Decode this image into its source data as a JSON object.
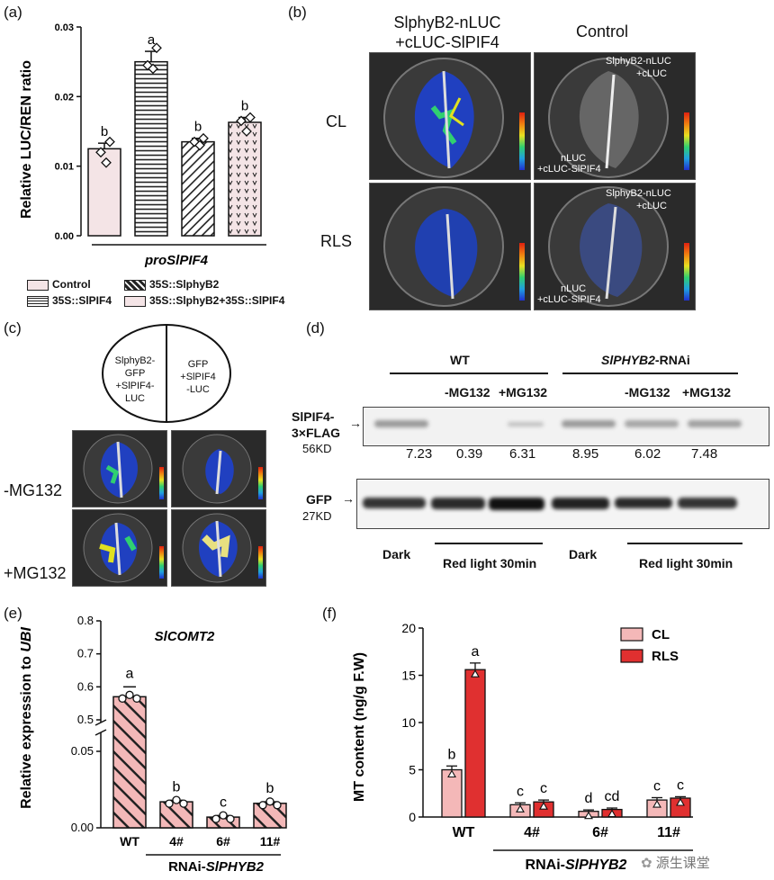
{
  "panel_a": {
    "tag": "(a)",
    "ylabel": "Relative LUC/REN ratio",
    "xlabel": "proSlPIF4",
    "legend": [
      "Control",
      "35S::SlPIF4",
      "35S::SlphyB2",
      "35S::SlphyB2+35S::SlPIF4"
    ],
    "letters": [
      "b",
      "a",
      "b",
      "b"
    ]
  },
  "panel_b": {
    "tag": "(b)",
    "col1_line1": "SlphyB2-nLUC",
    "col1_line2": "+cLUC-SlPIF4",
    "col2": "Control",
    "row1": "CL",
    "row2": "RLS",
    "ann_top1": "SlphyB2-nLUC",
    "ann_top2": "+cLUC",
    "ann_bot1": "nLUC",
    "ann_bot2": "+cLUC-SlPIF4"
  },
  "panel_c": {
    "tag": "(c)",
    "left_lines": [
      "SlphyB2-",
      "GFP",
      "+SlPIF4-",
      "LUC"
    ],
    "right_lines": [
      "GFP",
      "+SlPIF4",
      "-LUC"
    ],
    "row1": "-MG132",
    "row2": "+MG132"
  },
  "panel_d": {
    "tag": "(d)",
    "wt": "WT",
    "rnai_gene": "SlPHYB2",
    "rnai_suffix": "-RNAi",
    "mg_minus": "-MG132",
    "mg_plus": "+MG132",
    "mg_minus2": "-MG132",
    "mg_plus2": "+MG132",
    "band1_line1": "SlPIF4-",
    "band1_line2": "3×FLAG",
    "band1_kd": "56KD",
    "band2": "GFP",
    "band2_kd": "27KD",
    "quant": [
      "7.23",
      "0.39",
      "6.31",
      "8.95",
      "6.02",
      "7.48"
    ],
    "dark1": "Dark",
    "red1": "Red light 30min",
    "dark2": "Dark",
    "red2": "Red light 30min"
  },
  "chart_data": [
    {
      "type": "bar",
      "panel": "(a)",
      "categories": [
        "Control",
        "35S::SlPIF4",
        "35S::SlphyB2",
        "35S::SlphyB2+35S::SlPIF4"
      ],
      "values": [
        0.0125,
        0.025,
        0.0135,
        0.0163
      ],
      "errors": [
        0.0008,
        0.0015,
        0.0005,
        0.0007
      ],
      "points": [
        [
          0.0135,
          0.012,
          0.0105
        ],
        [
          0.027,
          0.0245,
          0.024
        ],
        [
          0.014,
          0.0135,
          0.013
        ],
        [
          0.017,
          0.0165,
          0.015
        ]
      ],
      "ylabel": "Relative LUC/REN ratio",
      "xlabel": "proSlPIF4",
      "ylim": [
        0,
        0.03
      ],
      "yticks": [
        "0.00",
        "0.01",
        "0.02",
        "0.03"
      ],
      "letters": [
        "b",
        "a",
        "b",
        "b"
      ]
    },
    {
      "type": "bar",
      "panel": "(e)",
      "tag": "(e)",
      "title": "SlCOMT2",
      "ylabel_prefix": "Relative expression to ",
      "ylabel_gene": "UBI",
      "categories": [
        "WT",
        "4#",
        "6#",
        "11#"
      ],
      "values": [
        0.57,
        0.017,
        0.007,
        0.016
      ],
      "errors": [
        0.03,
        0.001,
        0.001,
        0.001
      ],
      "letters": [
        "a",
        "b",
        "c",
        "b"
      ],
      "yticks_upper": [
        "0.5",
        "0.6",
        "0.7",
        "0.8"
      ],
      "yticks_lower": [
        "0.00",
        "0.05"
      ],
      "group_label_prefix": "RNAi-",
      "group_label_gene": "SlPHYB2"
    },
    {
      "type": "bar",
      "panel": "(f)",
      "tag": "(f)",
      "ylabel": "MT content (ng/g F.W)",
      "categories": [
        "WT",
        "4#",
        "6#",
        "11#"
      ],
      "series": [
        {
          "name": "CL",
          "values": [
            5.0,
            1.3,
            0.6,
            1.8
          ],
          "errors": [
            0.4,
            0.2,
            0.15,
            0.25
          ],
          "letters": [
            "b",
            "c",
            "d",
            "c"
          ],
          "color": "#f4b8b8"
        },
        {
          "name": "RLS",
          "values": [
            15.6,
            1.6,
            0.8,
            2.0
          ],
          "errors": [
            0.7,
            0.2,
            0.15,
            0.15
          ],
          "letters": [
            "a",
            "c",
            "cd",
            "c"
          ],
          "color": "#e03030"
        }
      ],
      "ylim": [
        0,
        20
      ],
      "yticks": [
        "0",
        "5",
        "10",
        "15",
        "20"
      ],
      "legend": "top-right",
      "group_label_prefix": "RNAi-",
      "group_label_gene": "SlPHYB2"
    }
  ],
  "watermark": "源生课堂"
}
